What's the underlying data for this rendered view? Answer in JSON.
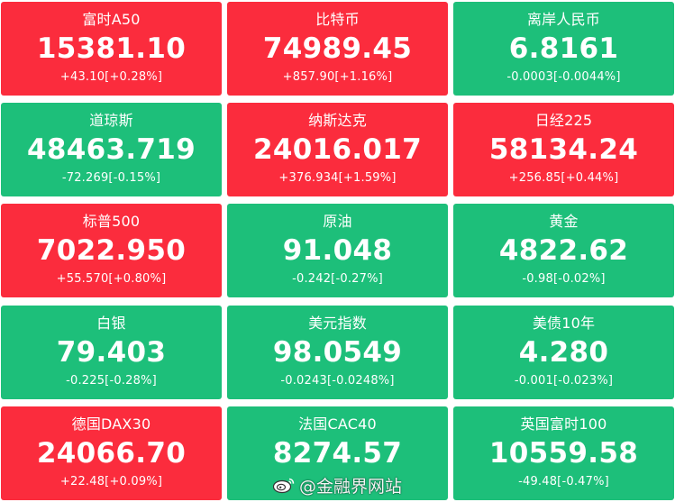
{
  "tiles": [
    {
      "name": "富时A50",
      "price": "15381.10",
      "change": "+43.10[+0.28%]",
      "trend": "up"
    },
    {
      "name": "比特币",
      "price": "74989.45",
      "change": "+857.90[+1.16%]",
      "trend": "up"
    },
    {
      "name": "离岸人民币",
      "price": "6.8161",
      "change": "-0.0003[-0.0044%]",
      "trend": "down"
    },
    {
      "name": "道琼斯",
      "price": "48463.719",
      "change": "-72.269[-0.15%]",
      "trend": "down"
    },
    {
      "name": "纳斯达克",
      "price": "24016.017",
      "change": "+376.934[+1.59%]",
      "trend": "up"
    },
    {
      "name": "日经225",
      "price": "58134.24",
      "change": "+256.85[+0.44%]",
      "trend": "up"
    },
    {
      "name": "标普500",
      "price": "7022.950",
      "change": "+55.570[+0.80%]",
      "trend": "up"
    },
    {
      "name": "原油",
      "price": "91.048",
      "change": "-0.242[-0.27%]",
      "trend": "down"
    },
    {
      "name": "黄金",
      "price": "4822.62",
      "change": "-0.98[-0.02%]",
      "trend": "down"
    },
    {
      "name": "白银",
      "price": "79.403",
      "change": "-0.225[-0.28%]",
      "trend": "down"
    },
    {
      "name": "美元指数",
      "price": "98.0549",
      "change": "-0.0243[-0.0248%]",
      "trend": "down"
    },
    {
      "name": "美债10年",
      "price": "4.280",
      "change": "-0.001[-0.023%]",
      "trend": "down"
    },
    {
      "name": "德国DAX30",
      "price": "24066.70",
      "change": "+22.48[+0.09%]",
      "trend": "up"
    },
    {
      "name": "法国CAC40",
      "price": "8274.57",
      "change": "",
      "trend": "down"
    },
    {
      "name": "英国富时100",
      "price": "10559.58",
      "change": "-49.48[-0.47%]",
      "trend": "down"
    }
  ],
  "colors": {
    "up": "#fb2c3d",
    "down": "#1dbf7a"
  },
  "watermark": {
    "text": "@金融界网站",
    "icon": "weibo-icon"
  }
}
